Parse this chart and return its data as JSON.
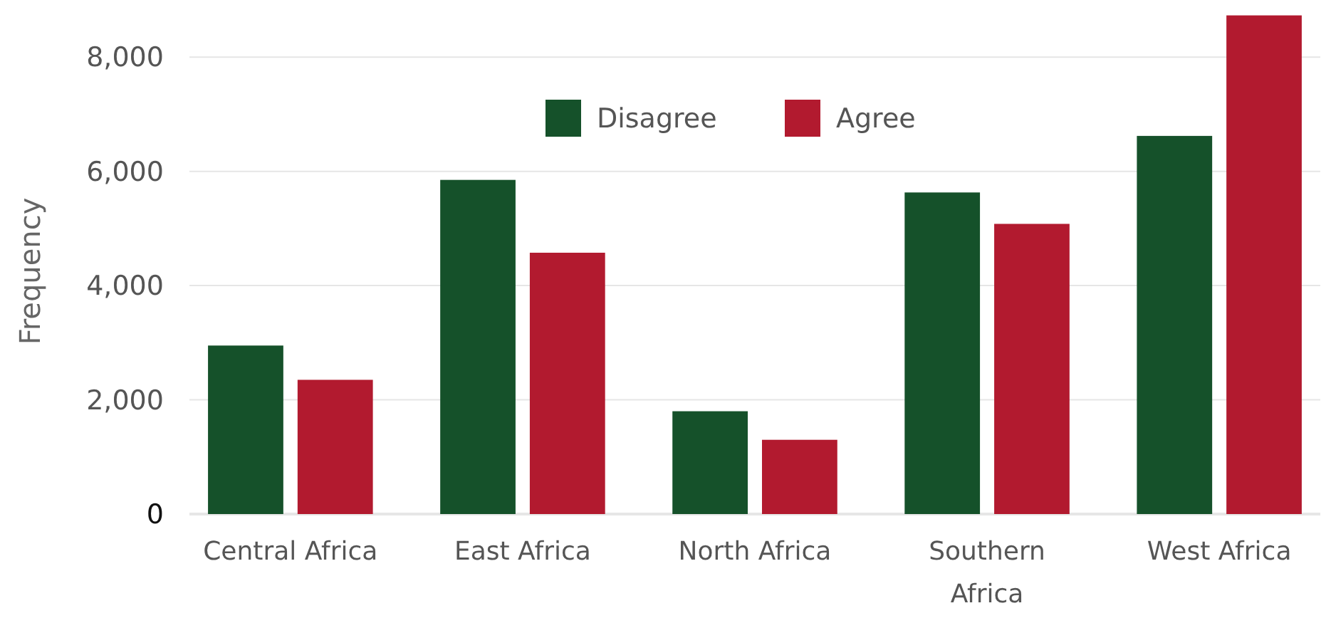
{
  "chart_data": {
    "type": "bar",
    "ylabel": "Frequency",
    "categories": [
      "Central Africa",
      "East Africa",
      "North Africa",
      "Southern Africa",
      "West Africa"
    ],
    "series": [
      {
        "name": "Disagree",
        "color": "#15512a",
        "values": [
          2950,
          5850,
          1800,
          5630,
          6620
        ]
      },
      {
        "name": "Agree",
        "color": "#b21a2f",
        "values": [
          2350,
          4575,
          1300,
          5080,
          8730
        ]
      }
    ],
    "ylim": [
      0,
      8750
    ],
    "yticks": [
      0,
      {
        "value": 2000,
        "label": "2,000"
      },
      {
        "value": 4000,
        "label": "4,000"
      },
      {
        "value": 6000,
        "label": "6,000"
      },
      {
        "value": 8000,
        "label": "8,000"
      }
    ],
    "grid": "y",
    "legend": "top"
  }
}
